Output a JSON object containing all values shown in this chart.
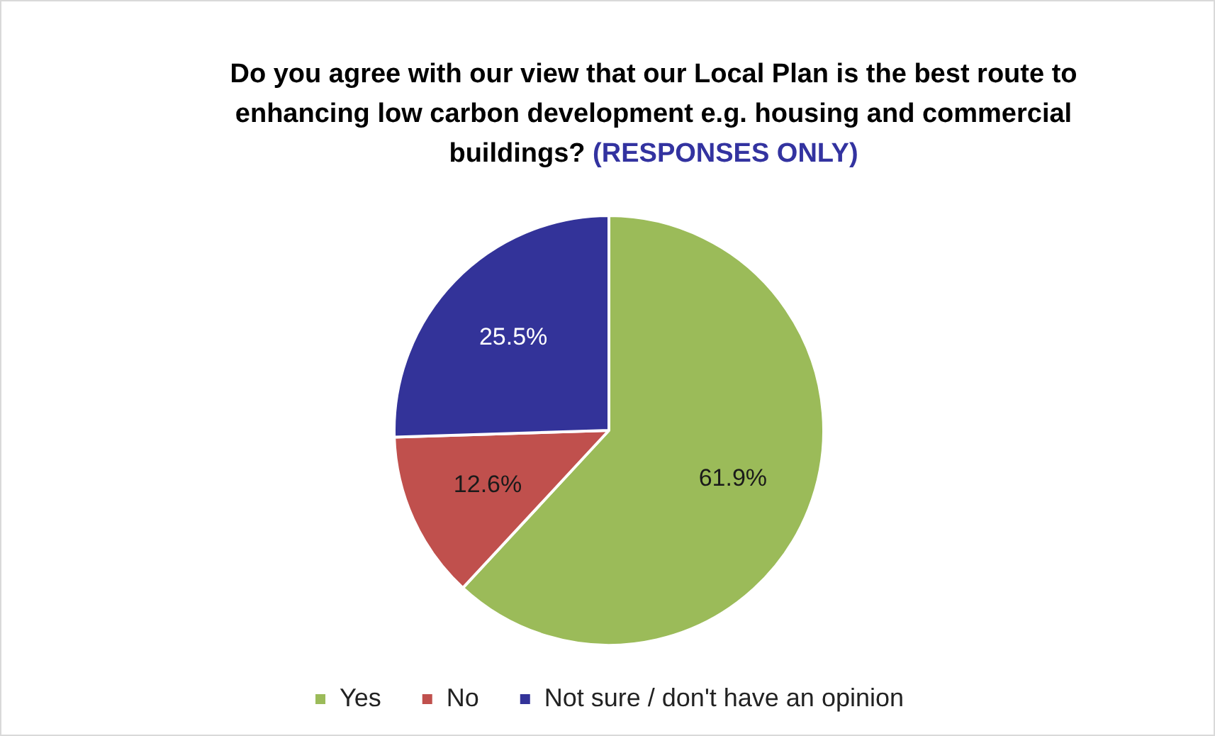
{
  "chart_data": {
    "type": "pie",
    "title": "Do you agree with our view that our Local Plan is the best route to enhancing low carbon development e.g. housing and commercial buildings?",
    "subtitle": "(RESPONSES ONLY)",
    "categories": [
      "Yes",
      "No",
      "Not sure / don't have an opinion"
    ],
    "values": [
      61.9,
      12.6,
      25.5
    ],
    "colors": [
      "#9bbb59",
      "#c0504d",
      "#333399"
    ],
    "value_labels": [
      "61.9%",
      "12.6%",
      "25.5%"
    ],
    "legend": "bottom"
  }
}
